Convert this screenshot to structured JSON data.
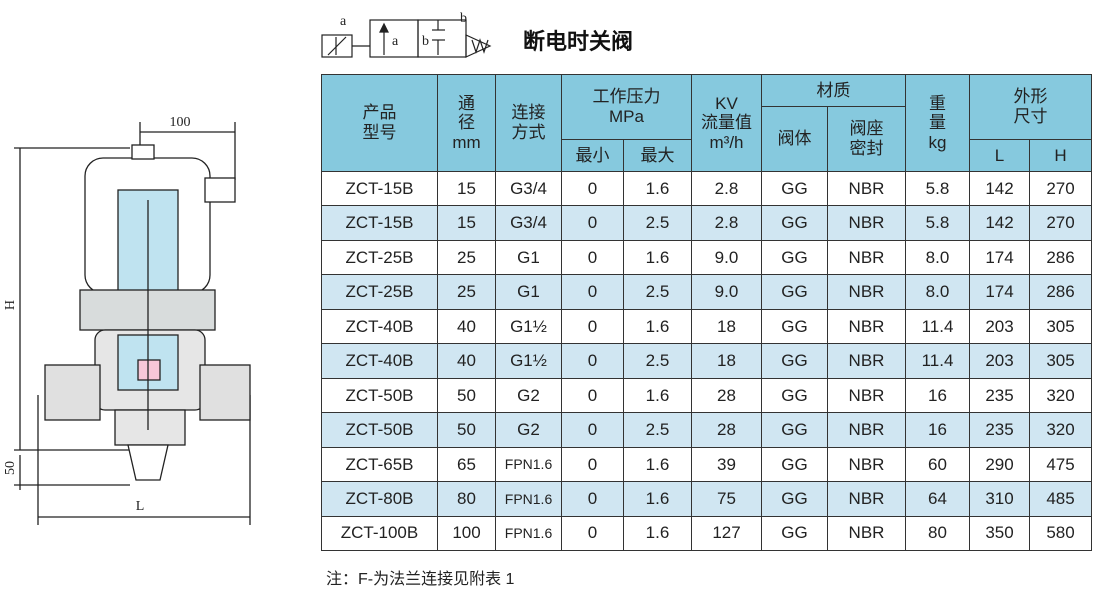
{
  "title": "断电时关阀",
  "symbol": {
    "labels": [
      "a",
      "a",
      "b",
      "b"
    ]
  },
  "drawing": {
    "dimensions": {
      "top": "100",
      "height": "H",
      "bottom": "50",
      "length": "L"
    }
  },
  "table": {
    "header": [
      {
        "lines": [
          "产品",
          "型号"
        ]
      },
      {
        "lines": [
          "通",
          "径",
          "mm"
        ]
      },
      {
        "lines": [
          "连接",
          "方式"
        ]
      },
      {
        "lines": [
          "工作压力",
          "MPa"
        ]
      },
      {
        "lines": [
          "KV",
          "流量值",
          "m³/h"
        ]
      },
      {
        "lines": [
          "材质"
        ]
      },
      {
        "lines": [
          "重",
          "量",
          "kg"
        ]
      },
      {
        "lines": [
          "外形",
          "尺寸"
        ]
      },
      {
        "lines": [
          "阀体"
        ]
      },
      {
        "lines": [
          "阀座",
          "密封"
        ]
      },
      {
        "lines": [
          "最小"
        ]
      },
      {
        "lines": [
          "最大"
        ]
      },
      {
        "lines": [
          "L"
        ]
      },
      {
        "lines": [
          "H"
        ]
      }
    ],
    "rows": [
      [
        "ZCT-15B",
        "15",
        "G3/4",
        "0",
        "1.6",
        "2.8",
        "GG",
        "NBR",
        "5.8",
        "142",
        "270"
      ],
      [
        "ZCT-15B",
        "15",
        "G3/4",
        "0",
        "2.5",
        "2.8",
        "GG",
        "NBR",
        "5.8",
        "142",
        "270"
      ],
      [
        "ZCT-25B",
        "25",
        "G1",
        "0",
        "1.6",
        "9.0",
        "GG",
        "NBR",
        "8.0",
        "174",
        "286"
      ],
      [
        "ZCT-25B",
        "25",
        "G1",
        "0",
        "2.5",
        "9.0",
        "GG",
        "NBR",
        "8.0",
        "174",
        "286"
      ],
      [
        "ZCT-40B",
        "40",
        "G1½",
        "0",
        "1.6",
        "18",
        "GG",
        "NBR",
        "11.4",
        "203",
        "305"
      ],
      [
        "ZCT-40B",
        "40",
        "G1½",
        "0",
        "2.5",
        "18",
        "GG",
        "NBR",
        "11.4",
        "203",
        "305"
      ],
      [
        "ZCT-50B",
        "50",
        "G2",
        "0",
        "1.6",
        "28",
        "GG",
        "NBR",
        "16",
        "235",
        "320"
      ],
      [
        "ZCT-50B",
        "50",
        "G2",
        "0",
        "2.5",
        "28",
        "GG",
        "NBR",
        "16",
        "235",
        "320"
      ],
      [
        "ZCT-65B",
        "65",
        "FPN1.6",
        "0",
        "1.6",
        "39",
        "GG",
        "NBR",
        "60",
        "290",
        "475"
      ],
      [
        "ZCT-80B",
        "80",
        "FPN1.6",
        "0",
        "1.6",
        "75",
        "GG",
        "NBR",
        "64",
        "310",
        "485"
      ],
      [
        "ZCT-100B",
        "100",
        "FPN1.6",
        "0",
        "1.6",
        "127",
        "GG",
        "NBR",
        "80",
        "350",
        "580"
      ]
    ]
  },
  "note": "注：F-为法兰连接见附表 1"
}
